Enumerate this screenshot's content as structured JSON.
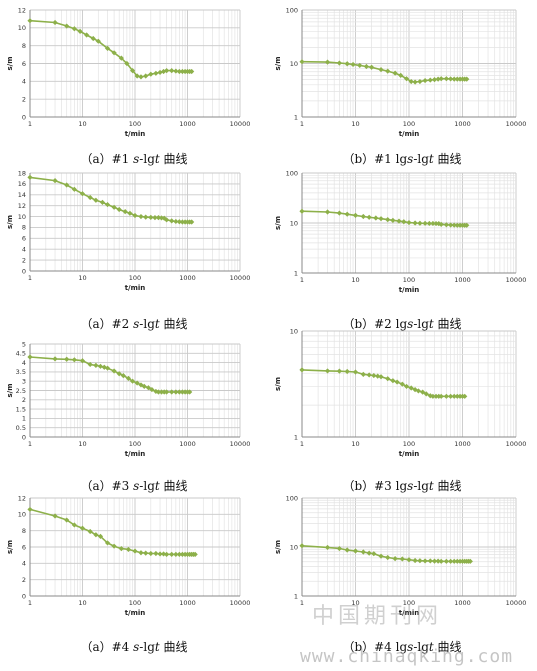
{
  "chart_data": [
    {
      "id": "a1",
      "type": "line",
      "scale": "semilog-x",
      "xlabel": "t/min",
      "ylabel": "s/m",
      "xticks": [
        "1",
        "10",
        "100",
        "1000",
        "10000"
      ],
      "yticks": [
        "0",
        "2",
        "4",
        "6",
        "8",
        "10",
        "12"
      ],
      "xlim": [
        1,
        10000
      ],
      "ylim": [
        0,
        12
      ],
      "series": [
        {
          "x": [
            1,
            3,
            5,
            7,
            9,
            12,
            16,
            20,
            30,
            40,
            55,
            70,
            90,
            110,
            130,
            160,
            200,
            250,
            300,
            350,
            400,
            500,
            600,
            700,
            800,
            900,
            1000,
            1100,
            1200
          ],
          "y": [
            10.8,
            10.6,
            10.2,
            9.9,
            9.6,
            9.2,
            8.8,
            8.5,
            7.7,
            7.2,
            6.6,
            6.0,
            5.2,
            4.6,
            4.5,
            4.6,
            4.8,
            4.9,
            5.0,
            5.1,
            5.2,
            5.2,
            5.15,
            5.1,
            5.1,
            5.1,
            5.1,
            5.1,
            5.1
          ]
        }
      ],
      "caption": {
        "label": "（a）#1 ",
        "var": "s",
        "mid": "-lg",
        "var2": "t",
        "tail": " 曲线"
      }
    },
    {
      "id": "b1",
      "type": "line",
      "scale": "log-log",
      "xlabel": "t/min",
      "ylabel": "s/m",
      "xticks": [
        "1",
        "10",
        "100",
        "1000",
        "10000"
      ],
      "yticks": [
        "1",
        "10",
        "100"
      ],
      "xlim": [
        1,
        10000
      ],
      "ylim": [
        1,
        100
      ],
      "series": [
        {
          "x": [
            1,
            3,
            5,
            7,
            9,
            12,
            16,
            20,
            30,
            40,
            55,
            70,
            90,
            110,
            130,
            160,
            200,
            250,
            300,
            350,
            400,
            500,
            600,
            700,
            800,
            900,
            1000,
            1100,
            1200
          ],
          "y": [
            10.8,
            10.6,
            10.2,
            9.9,
            9.6,
            9.2,
            8.8,
            8.5,
            7.7,
            7.2,
            6.6,
            6.0,
            5.2,
            4.6,
            4.5,
            4.6,
            4.8,
            4.9,
            5.0,
            5.1,
            5.2,
            5.2,
            5.15,
            5.1,
            5.1,
            5.1,
            5.1,
            5.1,
            5.1
          ]
        }
      ],
      "caption": {
        "label": "（b）#1 lg",
        "var": "s",
        "mid": "-lg",
        "var2": "t",
        "tail": " 曲线"
      }
    },
    {
      "id": "a2",
      "type": "line",
      "scale": "semilog-x",
      "xlabel": "t/min",
      "ylabel": "s/m",
      "xticks": [
        "1",
        "10",
        "100",
        "1000",
        "10000"
      ],
      "yticks": [
        "0",
        "2",
        "4",
        "6",
        "8",
        "10",
        "12",
        "14",
        "16",
        "18"
      ],
      "xlim": [
        1,
        10000
      ],
      "ylim": [
        0,
        18
      ],
      "series": [
        {
          "x": [
            1,
            3,
            5,
            7,
            10,
            14,
            18,
            24,
            30,
            40,
            50,
            65,
            80,
            100,
            130,
            160,
            200,
            240,
            280,
            320,
            360,
            400,
            500,
            600,
            700,
            800,
            900,
            1000,
            1100,
            1200
          ],
          "y": [
            17.2,
            16.6,
            15.8,
            15.0,
            14.2,
            13.5,
            13.0,
            12.6,
            12.2,
            11.7,
            11.3,
            10.9,
            10.6,
            10.2,
            10.0,
            9.9,
            9.85,
            9.8,
            9.8,
            9.75,
            9.7,
            9.4,
            9.2,
            9.1,
            9.05,
            9.0,
            9.0,
            9.0,
            9.0,
            9.0
          ]
        }
      ],
      "caption": {
        "label": "（a）#2 ",
        "var": "s",
        "mid": "-lg",
        "var2": "t",
        "tail": " 曲线"
      }
    },
    {
      "id": "b2",
      "type": "line",
      "scale": "log-log",
      "xlabel": "t/min",
      "ylabel": "s/m",
      "xticks": [
        "1",
        "10",
        "100",
        "1000",
        "10000"
      ],
      "yticks": [
        "1",
        "10",
        "100"
      ],
      "xlim": [
        1,
        10000
      ],
      "ylim": [
        1,
        100
      ],
      "series": [
        {
          "x": [
            1,
            3,
            5,
            7,
            10,
            14,
            18,
            24,
            30,
            40,
            50,
            65,
            80,
            100,
            130,
            160,
            200,
            240,
            280,
            320,
            360,
            400,
            500,
            600,
            700,
            800,
            900,
            1000,
            1100,
            1200
          ],
          "y": [
            17.2,
            16.6,
            15.8,
            15.0,
            14.2,
            13.5,
            13.0,
            12.6,
            12.2,
            11.7,
            11.3,
            10.9,
            10.6,
            10.2,
            10.0,
            9.9,
            9.85,
            9.8,
            9.8,
            9.75,
            9.7,
            9.4,
            9.2,
            9.1,
            9.05,
            9.0,
            9.0,
            9.0,
            9.0,
            9.0
          ]
        }
      ],
      "caption": {
        "label": "（b）#2 lg",
        "var": "s",
        "mid": "-lg",
        "var2": "t",
        "tail": " 曲线"
      }
    },
    {
      "id": "a3",
      "type": "line",
      "scale": "semilog-x",
      "xlabel": "t/min",
      "ylabel": "s/m",
      "xticks": [
        "1",
        "10",
        "100",
        "1000",
        "10000"
      ],
      "yticks": [
        "0",
        "0.5",
        "1",
        "1.5",
        "2",
        "2.5",
        "3",
        "3.5",
        "4",
        "4.5",
        "5"
      ],
      "xlim": [
        1,
        10000
      ],
      "ylim": [
        0,
        5
      ],
      "series": [
        {
          "x": [
            1,
            3,
            5,
            7,
            10,
            14,
            18,
            22,
            26,
            30,
            40,
            50,
            60,
            75,
            90,
            110,
            130,
            150,
            180,
            210,
            250,
            280,
            320,
            360,
            400,
            500,
            600,
            700,
            800,
            900,
            1000,
            1100
          ],
          "y": [
            4.3,
            4.2,
            4.18,
            4.15,
            4.1,
            3.9,
            3.85,
            3.8,
            3.75,
            3.7,
            3.55,
            3.4,
            3.3,
            3.15,
            3.0,
            2.9,
            2.8,
            2.72,
            2.65,
            2.55,
            2.45,
            2.42,
            2.42,
            2.42,
            2.42,
            2.42,
            2.42,
            2.42,
            2.42,
            2.42,
            2.42,
            2.42
          ]
        }
      ],
      "caption": {
        "label": "（a）#3 ",
        "var": "s",
        "mid": "-lg",
        "var2": "t",
        "tail": " 曲线"
      }
    },
    {
      "id": "b3",
      "type": "line",
      "scale": "log-log",
      "xlabel": "t/min",
      "ylabel": "s/m",
      "xticks": [
        "1",
        "10",
        "100",
        "1000",
        "10000"
      ],
      "yticks": [
        "1",
        "10"
      ],
      "xlim": [
        1,
        10000
      ],
      "ylim": [
        1,
        10
      ],
      "series": [
        {
          "x": [
            1,
            3,
            5,
            7,
            10,
            14,
            18,
            22,
            26,
            30,
            40,
            50,
            60,
            75,
            90,
            110,
            130,
            150,
            180,
            210,
            250,
            280,
            320,
            360,
            400,
            500,
            600,
            700,
            800,
            900,
            1000,
            1100
          ],
          "y": [
            4.3,
            4.2,
            4.18,
            4.15,
            4.1,
            3.9,
            3.85,
            3.8,
            3.75,
            3.7,
            3.55,
            3.4,
            3.3,
            3.15,
            3.0,
            2.9,
            2.8,
            2.72,
            2.65,
            2.55,
            2.45,
            2.42,
            2.42,
            2.42,
            2.42,
            2.42,
            2.42,
            2.42,
            2.42,
            2.42,
            2.42,
            2.42
          ]
        }
      ],
      "caption": {
        "label": "（b）#3 lg",
        "var": "s",
        "mid": "-lg",
        "var2": "t",
        "tail": " 曲线"
      }
    },
    {
      "id": "a4",
      "type": "line",
      "scale": "semilog-x",
      "xlabel": "t/min",
      "ylabel": "s/m",
      "xticks": [
        "1",
        "10",
        "100",
        "1000",
        "10000"
      ],
      "yticks": [
        "0",
        "2",
        "4",
        "6",
        "8",
        "10",
        "12"
      ],
      "xlim": [
        1,
        10000
      ],
      "ylim": [
        0,
        12
      ],
      "series": [
        {
          "x": [
            1,
            3,
            5,
            7,
            10,
            14,
            18,
            22,
            30,
            40,
            55,
            75,
            100,
            130,
            160,
            200,
            250,
            300,
            350,
            400,
            500,
            600,
            700,
            800,
            900,
            1000,
            1100,
            1200,
            1300,
            1400
          ],
          "y": [
            10.6,
            9.8,
            9.3,
            8.7,
            8.3,
            7.9,
            7.5,
            7.3,
            6.5,
            6.1,
            5.8,
            5.7,
            5.5,
            5.3,
            5.25,
            5.2,
            5.2,
            5.15,
            5.15,
            5.1,
            5.1,
            5.1,
            5.1,
            5.1,
            5.1,
            5.1,
            5.1,
            5.1,
            5.1,
            5.1
          ]
        }
      ],
      "caption": {
        "label": "（a）#4 ",
        "var": "s",
        "mid": "-lg",
        "var2": "t",
        "tail": " 曲线"
      }
    },
    {
      "id": "b4",
      "type": "line",
      "scale": "log-log",
      "xlabel": "t/min",
      "ylabel": "s/m",
      "xticks": [
        "1",
        "10",
        "100",
        "1000",
        "10000"
      ],
      "yticks": [
        "1",
        "10",
        "100"
      ],
      "xlim": [
        1,
        10000
      ],
      "ylim": [
        1,
        100
      ],
      "series": [
        {
          "x": [
            1,
            3,
            5,
            7,
            10,
            14,
            18,
            22,
            30,
            40,
            55,
            75,
            100,
            130,
            160,
            200,
            250,
            300,
            350,
            400,
            500,
            600,
            700,
            800,
            900,
            1000,
            1100,
            1200,
            1300,
            1400
          ],
          "y": [
            10.6,
            9.8,
            9.3,
            8.7,
            8.3,
            7.9,
            7.5,
            7.3,
            6.5,
            6.1,
            5.8,
            5.7,
            5.5,
            5.3,
            5.25,
            5.2,
            5.2,
            5.15,
            5.15,
            5.1,
            5.1,
            5.1,
            5.1,
            5.1,
            5.1,
            5.1,
            5.1,
            5.1,
            5.1,
            5.1
          ]
        }
      ],
      "caption": {
        "label": "（b）#4 lg",
        "var": "s",
        "mid": "-lg",
        "var2": "t",
        "tail": " 曲线"
      }
    }
  ],
  "style": {
    "line_color": "#8DB04A",
    "grid_color": "#c9c9c9",
    "minor_grid_color": "#e3e3e3",
    "axis_color": "#888888"
  },
  "watermark": {
    "cn": "中国期刊网",
    "url": "www.chinaqking.com"
  }
}
